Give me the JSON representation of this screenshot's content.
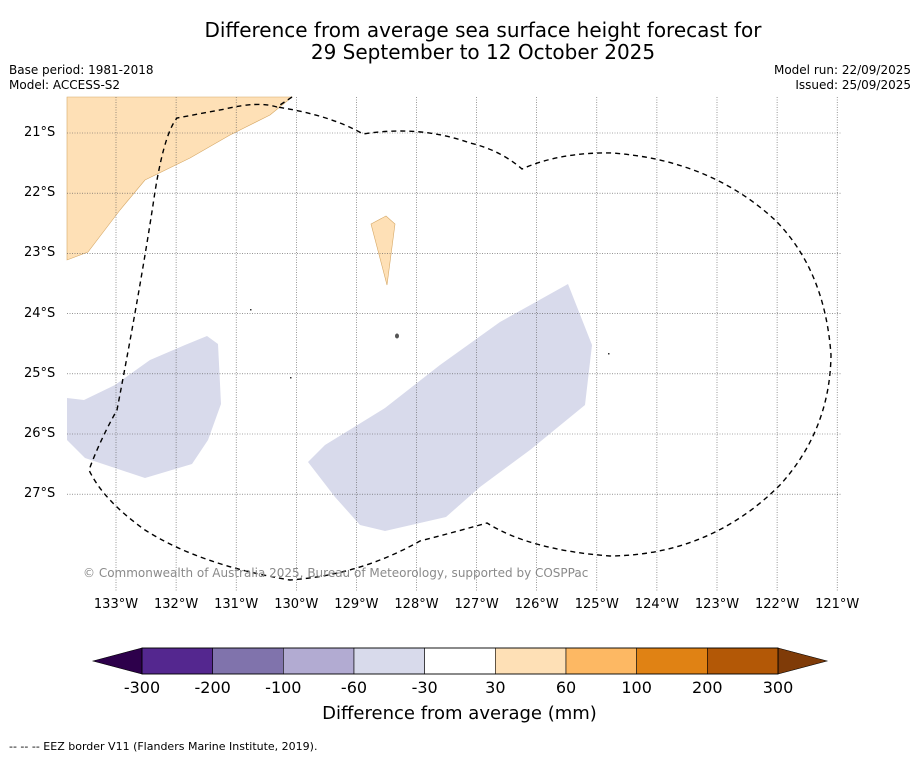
{
  "title": {
    "line1": "Difference from average sea surface height forecast for",
    "line2": "29 September to 12 October 2025"
  },
  "meta": {
    "base_period": "Base period: 1981-2018",
    "model": "Model: ACCESS-S2",
    "model_run": "Model run: 22/09/2025",
    "issued": "Issued: 25/09/2025"
  },
  "map": {
    "lat_labels": [
      "21°S",
      "22°S",
      "23°S",
      "24°S",
      "25°S",
      "26°S",
      "27°S"
    ],
    "lon_labels": [
      "133°W",
      "132°W",
      "131°W",
      "130°W",
      "129°W",
      "128°W",
      "127°W",
      "126°W",
      "125°W",
      "124°W",
      "123°W",
      "122°W",
      "121°W"
    ],
    "copyright": "© Commonwealth of Australia 2025, Bureau of Meteorology, supported by COSPPac",
    "anomaly_regions": [
      {
        "name": "northwest-positive-anomaly",
        "range_mm": "30 to 60",
        "color": "#fee0b6"
      },
      {
        "name": "small-island-positive-anomaly",
        "range_mm": "30 to 60",
        "color": "#fee0b6"
      },
      {
        "name": "west-negative-anomaly",
        "range_mm": "-60 to -30",
        "color": "#d8daeb"
      },
      {
        "name": "central-negative-anomaly",
        "range_mm": "-60 to -30",
        "color": "#d8daeb"
      }
    ]
  },
  "colorbar": {
    "title": "Difference from average (mm)",
    "tick_labels": [
      "-300",
      "-200",
      "-100",
      "-60",
      "-30",
      "30",
      "60",
      "100",
      "200",
      "300"
    ],
    "colors": [
      "#54278f",
      "#8073ac",
      "#b2abd2",
      "#d8daeb",
      "#ffffff",
      "#fee0b6",
      "#fdb863",
      "#e08214",
      "#b35806"
    ],
    "under_color": "#2d004b",
    "over_color": "#7f3b08"
  },
  "footnote": "--  --  -- EEZ border V11 (Flanders Marine Institute, 2019)."
}
